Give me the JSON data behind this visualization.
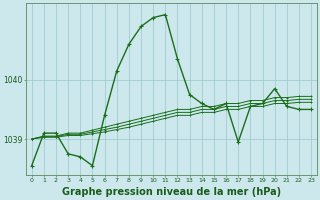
{
  "background_color": "#cce8ec",
  "grid_color": "#9ac8cc",
  "line_color": "#1a6e1a",
  "title": "Graphe pression niveau de la mer (hPa)",
  "title_fontsize": 7,
  "x_ticks": [
    0,
    1,
    2,
    3,
    4,
    5,
    6,
    7,
    8,
    9,
    10,
    11,
    12,
    13,
    14,
    15,
    16,
    17,
    18,
    19,
    20,
    21,
    22,
    23
  ],
  "ylim": [
    1038.4,
    1041.3
  ],
  "yticks": [
    1039,
    1040
  ],
  "y_main": [
    1038.55,
    1039.1,
    1039.1,
    1038.75,
    1038.7,
    1038.55,
    1039.4,
    1040.15,
    1040.6,
    1040.9,
    1041.05,
    1041.1,
    1040.35,
    1039.75,
    1039.6,
    1039.5,
    1039.6,
    1038.95,
    1039.55,
    1039.6,
    1039.85,
    1039.55,
    1039.5,
    1039.5
  ],
  "y_flat1": [
    1039.0,
    1039.05,
    1039.05,
    1039.1,
    1039.1,
    1039.15,
    1039.2,
    1039.25,
    1039.3,
    1039.35,
    1039.4,
    1039.45,
    1039.5,
    1039.5,
    1039.55,
    1039.55,
    1039.6,
    1039.6,
    1039.65,
    1039.65,
    1039.7,
    1039.7,
    1039.72,
    1039.72
  ],
  "y_flat2": [
    1039.0,
    1039.04,
    1039.04,
    1039.08,
    1039.08,
    1039.12,
    1039.16,
    1039.2,
    1039.25,
    1039.3,
    1039.35,
    1039.4,
    1039.45,
    1039.45,
    1039.5,
    1039.5,
    1039.55,
    1039.55,
    1039.6,
    1039.6,
    1039.65,
    1039.65,
    1039.67,
    1039.67
  ],
  "y_flat3": [
    1039.0,
    1039.03,
    1039.03,
    1039.06,
    1039.06,
    1039.09,
    1039.12,
    1039.16,
    1039.2,
    1039.25,
    1039.3,
    1039.35,
    1039.4,
    1039.4,
    1039.45,
    1039.45,
    1039.5,
    1039.5,
    1039.55,
    1039.55,
    1039.6,
    1039.6,
    1039.62,
    1039.62
  ]
}
